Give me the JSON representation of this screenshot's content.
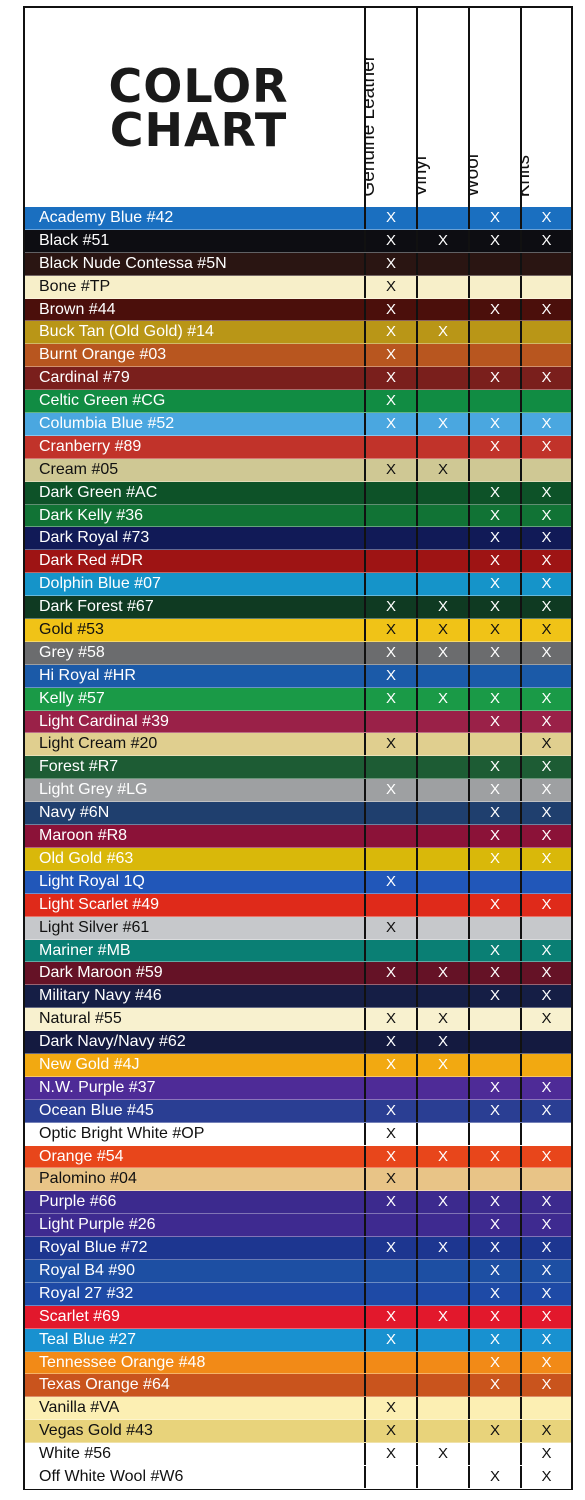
{
  "title": "COLOR\nCHART",
  "columns": [
    "Genuine Leather",
    "Vinyl",
    "Wool",
    "Knits"
  ],
  "rows": [
    {
      "name": "Academy Blue #42",
      "color": "#1a6fc0",
      "marks": [
        "X",
        "",
        "X",
        "X"
      ]
    },
    {
      "name": "Black #51",
      "color": "#0d0d12",
      "marks": [
        "X",
        "X",
        "X",
        "X"
      ]
    },
    {
      "name": "Black Nude Contessa #5N",
      "color": "#2a1512",
      "marks": [
        "X",
        "",
        "",
        ""
      ]
    },
    {
      "name": "Bone #TP",
      "color": "#f7efc9",
      "marks": [
        "X",
        "",
        "",
        ""
      ]
    },
    {
      "name": "Brown #44",
      "color": "#4b0f0b",
      "marks": [
        "X",
        "",
        "X",
        "X"
      ]
    },
    {
      "name": "Buck Tan (Old Gold) #14",
      "color": "#b99617",
      "marks": [
        "X",
        "X",
        "",
        ""
      ]
    },
    {
      "name": "Burnt Orange #03",
      "color": "#b8561f",
      "marks": [
        "X",
        "",
        "",
        ""
      ]
    },
    {
      "name": "Cardinal #79",
      "color": "#7a1f1c",
      "marks": [
        "X",
        "",
        "X",
        "X"
      ]
    },
    {
      "name": "Celtic Green #CG",
      "color": "#118c43",
      "marks": [
        "X",
        "",
        "",
        ""
      ]
    },
    {
      "name": "Columbia Blue #52",
      "color": "#4aa7e0",
      "marks": [
        "X",
        "X",
        "X",
        "X"
      ]
    },
    {
      "name": "Cranberry #89",
      "color": "#c1332a",
      "marks": [
        "",
        "",
        "X",
        "X"
      ]
    },
    {
      "name": "Cream #05",
      "color": "#cfc894",
      "marks": [
        "X",
        "X",
        "",
        ""
      ]
    },
    {
      "name": "Dark Green #AC",
      "color": "#0d5228",
      "marks": [
        "",
        "",
        "X",
        "X"
      ]
    },
    {
      "name": "Dark Kelly #36",
      "color": "#117335",
      "marks": [
        "",
        "",
        "X",
        "X"
      ]
    },
    {
      "name": "Dark Royal #73",
      "color": "#111a57",
      "marks": [
        "",
        "",
        "X",
        "X"
      ]
    },
    {
      "name": "Dark Red #DR",
      "color": "#9e1414",
      "marks": [
        "",
        "",
        "X",
        "X"
      ]
    },
    {
      "name": "Dolphin Blue #07",
      "color": "#1594c9",
      "marks": [
        "",
        "",
        "X",
        "X"
      ]
    },
    {
      "name": "Dark Forest #67",
      "color": "#0f3a22",
      "marks": [
        "X",
        "X",
        "X",
        "X"
      ]
    },
    {
      "name": "Gold #53",
      "color": "#f0c317",
      "marks": [
        "X",
        "X",
        "X",
        "X"
      ]
    },
    {
      "name": "Grey #58",
      "color": "#6b6c6e",
      "marks": [
        "X",
        "X",
        "X",
        "X"
      ]
    },
    {
      "name": "Hi Royal #HR",
      "color": "#1b5aa8",
      "marks": [
        "X",
        "",
        "",
        ""
      ]
    },
    {
      "name": "Kelly #57",
      "color": "#1a9a47",
      "marks": [
        "X",
        "X",
        "X",
        "X"
      ]
    },
    {
      "name": "Light Cardinal #39",
      "color": "#9a2148",
      "marks": [
        "",
        "",
        "X",
        "X"
      ]
    },
    {
      "name": "Light Cream #20",
      "color": "#e0cf8f",
      "marks": [
        "X",
        "",
        "",
        "X"
      ]
    },
    {
      "name": "Forest #R7",
      "color": "#1d5c34",
      "marks": [
        "",
        "",
        "X",
        "X"
      ]
    },
    {
      "name": "Light Grey #LG",
      "color": "#9ea0a2",
      "marks": [
        "X",
        "",
        "X",
        "X"
      ]
    },
    {
      "name": "Navy #6N",
      "color": "#1f3f6e",
      "marks": [
        "",
        "",
        "X",
        "X"
      ]
    },
    {
      "name": "Maroon #R8",
      "color": "#8b1238",
      "marks": [
        "",
        "",
        "X",
        "X"
      ]
    },
    {
      "name": "Old Gold #63",
      "color": "#d9b80a",
      "marks": [
        "",
        "",
        "X",
        "X"
      ]
    },
    {
      "name": "Light Royal 1Q",
      "color": "#2157b9",
      "marks": [
        "X",
        "",
        "",
        ""
      ]
    },
    {
      "name": "Light Scarlet #49",
      "color": "#df2a1a",
      "marks": [
        "",
        "",
        "X",
        "X"
      ]
    },
    {
      "name": "Light Silver #61",
      "color": "#c6c8cb",
      "marks": [
        "X",
        "",
        "",
        ""
      ]
    },
    {
      "name": "Mariner #MB",
      "color": "#0a7f74",
      "marks": [
        "",
        "",
        "X",
        "X"
      ]
    },
    {
      "name": "Dark Maroon #59",
      "color": "#651226",
      "marks": [
        "X",
        "X",
        "X",
        "X"
      ]
    },
    {
      "name": "Military Navy #46",
      "color": "#151e45",
      "marks": [
        "",
        "",
        "X",
        "X"
      ]
    },
    {
      "name": "Natural #55",
      "color": "#f8f1cf",
      "marks": [
        "X",
        "X",
        "",
        "X"
      ]
    },
    {
      "name": "Dark Navy/Navy #62",
      "color": "#141a40",
      "marks": [
        "X",
        "X",
        "",
        ""
      ]
    },
    {
      "name": "New Gold #4J",
      "color": "#f2a911",
      "marks": [
        "X",
        "X",
        "",
        ""
      ]
    },
    {
      "name": "N.W. Purple #37",
      "color": "#4e2b97",
      "marks": [
        "",
        "",
        "X",
        "X"
      ]
    },
    {
      "name": "Ocean Blue #45",
      "color": "#2a3e93",
      "marks": [
        "X",
        "",
        "X",
        "X"
      ]
    },
    {
      "name": "Optic Bright White #OP",
      "color": "#ffffff",
      "marks": [
        "X",
        "",
        "",
        ""
      ]
    },
    {
      "name": "Orange #54",
      "color": "#e8461b",
      "marks": [
        "X",
        "X",
        "X",
        "X"
      ]
    },
    {
      "name": "Palomino #04",
      "color": "#e8c487",
      "marks": [
        "X",
        "",
        "",
        ""
      ]
    },
    {
      "name": "Purple #66",
      "color": "#3c2a8e",
      "marks": [
        "X",
        "X",
        "X",
        "X"
      ]
    },
    {
      "name": "Light Purple #26",
      "color": "#3e2a90",
      "marks": [
        "",
        "",
        "X",
        "X"
      ]
    },
    {
      "name": "Royal Blue #72",
      "color": "#1d3690",
      "marks": [
        "X",
        "X",
        "X",
        "X"
      ]
    },
    {
      "name": "Royal B4 #90",
      "color": "#1d4fa3",
      "marks": [
        "",
        "",
        "X",
        "X"
      ]
    },
    {
      "name": "Royal 27 #32",
      "color": "#1e4aa6",
      "marks": [
        "",
        "",
        "X",
        "X"
      ]
    },
    {
      "name": "Scarlet #69",
      "color": "#e2182c",
      "marks": [
        "X",
        "X",
        "X",
        "X"
      ]
    },
    {
      "name": "Teal Blue #27",
      "color": "#1891d0",
      "marks": [
        "X",
        "",
        "X",
        "X"
      ]
    },
    {
      "name": "Tennessee Orange #48",
      "color": "#f28a17",
      "marks": [
        "",
        "",
        "X",
        "X"
      ]
    },
    {
      "name": "Texas Orange #64",
      "color": "#c9541d",
      "marks": [
        "",
        "",
        "X",
        "X"
      ]
    },
    {
      "name": "Vanilla #VA",
      "color": "#fcefb3",
      "marks": [
        "X",
        "",
        "",
        ""
      ]
    },
    {
      "name": "Vegas Gold #43",
      "color": "#e8d37b",
      "marks": [
        "X",
        "",
        "X",
        "X"
      ]
    },
    {
      "name": "White #56",
      "color": "#ffffff",
      "marks": [
        "X",
        "X",
        "",
        "X"
      ]
    },
    {
      "name": "Off White Wool #W6",
      "color": "#ffffff",
      "marks": [
        "",
        "",
        "X",
        "X"
      ]
    }
  ]
}
